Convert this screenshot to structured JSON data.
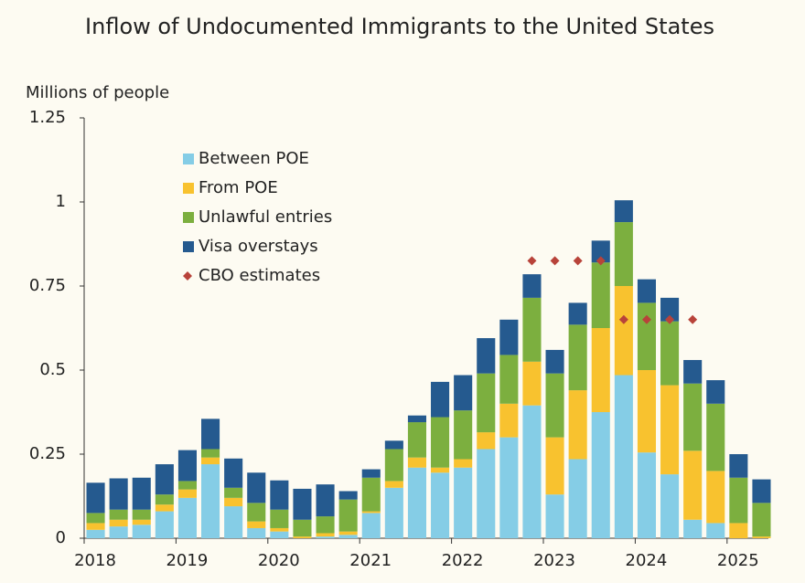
{
  "chart_data": {
    "type": "bar",
    "stacked": true,
    "title": "Inflow of Undocumented Immigrants to the United States",
    "y_label": "Millions of people",
    "x": [
      2018.125,
      2018.375,
      2018.625,
      2018.875,
      2019.125,
      2019.375,
      2019.625,
      2019.875,
      2020.125,
      2020.375,
      2020.625,
      2020.875,
      2021.125,
      2021.375,
      2021.625,
      2021.875,
      2022.125,
      2022.375,
      2022.625,
      2022.875,
      2023.125,
      2023.375,
      2023.625,
      2023.875,
      2024.125,
      2024.375,
      2024.625,
      2024.875,
      2025.125,
      2025.375
    ],
    "xlim": [
      2018,
      2025.45
    ],
    "xticks": [
      2018,
      2019,
      2020,
      2021,
      2022,
      2023,
      2024,
      2025
    ],
    "ylim": [
      0,
      1.25
    ],
    "yticks": [
      0,
      0.25,
      0.5,
      0.75,
      1,
      1.25
    ],
    "grid": false,
    "legend": "upper left",
    "series": [
      {
        "name": "Between POE",
        "color": "#85cde6",
        "values": [
          0.025,
          0.035,
          0.04,
          0.08,
          0.12,
          0.22,
          0.095,
          0.03,
          0.02,
          0.0,
          0.005,
          0.01,
          0.075,
          0.15,
          0.21,
          0.195,
          0.21,
          0.265,
          0.3,
          0.395,
          0.13,
          0.235,
          0.375,
          0.485,
          0.255,
          0.19,
          0.055,
          0.045,
          0.0,
          0.0
        ]
      },
      {
        "name": "From POE",
        "color": "#f8c22f",
        "values": [
          0.02,
          0.02,
          0.015,
          0.02,
          0.025,
          0.02,
          0.025,
          0.02,
          0.01,
          0.005,
          0.01,
          0.01,
          0.005,
          0.02,
          0.03,
          0.015,
          0.025,
          0.05,
          0.1,
          0.13,
          0.17,
          0.205,
          0.25,
          0.265,
          0.245,
          0.265,
          0.205,
          0.155,
          0.045,
          0.005
        ]
      },
      {
        "name": "Unlawful entries",
        "color": "#7caf3f",
        "values": [
          0.03,
          0.03,
          0.03,
          0.03,
          0.025,
          0.025,
          0.03,
          0.055,
          0.055,
          0.05,
          0.05,
          0.095,
          0.1,
          0.095,
          0.105,
          0.15,
          0.145,
          0.175,
          0.145,
          0.19,
          0.19,
          0.195,
          0.195,
          0.19,
          0.2,
          0.19,
          0.2,
          0.2,
          0.135,
          0.1
        ]
      },
      {
        "name": "Visa overstays",
        "color": "#255a8f",
        "values": [
          0.09,
          0.093,
          0.095,
          0.09,
          0.092,
          0.09,
          0.087,
          0.09,
          0.087,
          0.092,
          0.095,
          0.025,
          0.025,
          0.025,
          0.02,
          0.105,
          0.105,
          0.105,
          0.105,
          0.07,
          0.07,
          0.065,
          0.065,
          0.065,
          0.07,
          0.07,
          0.07,
          0.07,
          0.07,
          0.07
        ]
      },
      {
        "name": "CBO estimates",
        "type": "scatter",
        "color": "#b8433a",
        "values": [
          null,
          null,
          null,
          null,
          null,
          null,
          null,
          null,
          null,
          null,
          null,
          null,
          null,
          null,
          null,
          null,
          null,
          null,
          null,
          0.825,
          0.825,
          0.825,
          0.825,
          0.65,
          0.65,
          0.65,
          0.65,
          null,
          null,
          null
        ]
      }
    ]
  }
}
